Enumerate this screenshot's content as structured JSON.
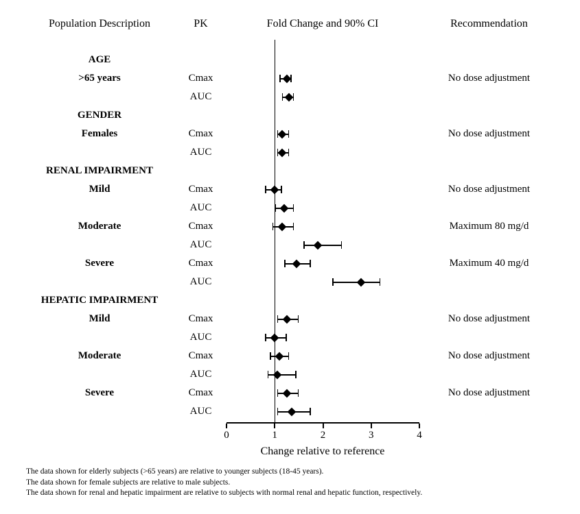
{
  "columns": {
    "population": "Population Description",
    "pk": "PK",
    "fold_change": "Fold Change and 90% CI",
    "recommendation": "Recommendation"
  },
  "chart_data": {
    "type": "scatter",
    "subtype": "forest-plot",
    "title": "Fold Change and 90% CI",
    "x_axis": {
      "min": 0,
      "max": 4,
      "ticks": [
        0,
        1,
        2,
        3,
        4
      ],
      "label": "Change relative to reference",
      "reference_line": 1,
      "grid": false
    },
    "marker_color": "#000000",
    "rows": [
      {
        "kind": "group",
        "label": "AGE"
      },
      {
        "kind": "data",
        "label": ">65 years",
        "pk": "Cmax",
        "estimate": 1.25,
        "ci_low": 1.1,
        "ci_high": 1.35,
        "recommendation": "No dose adjustment"
      },
      {
        "kind": "data",
        "label": "",
        "pk": "AUC",
        "estimate": 1.3,
        "ci_low": 1.15,
        "ci_high": 1.4
      },
      {
        "kind": "group",
        "label": "GENDER"
      },
      {
        "kind": "data",
        "label": "Females",
        "pk": "Cmax",
        "estimate": 1.15,
        "ci_low": 1.05,
        "ci_high": 1.3,
        "recommendation": "No dose adjustment"
      },
      {
        "kind": "data",
        "label": "",
        "pk": "AUC",
        "estimate": 1.15,
        "ci_low": 1.05,
        "ci_high": 1.3
      },
      {
        "kind": "group",
        "label": "RENAL IMPAIRMENT"
      },
      {
        "kind": "data",
        "label": "Mild",
        "pk": "Cmax",
        "estimate": 1.0,
        "ci_low": 0.8,
        "ci_high": 1.15,
        "recommendation": "No dose adjustment"
      },
      {
        "kind": "data",
        "label": "",
        "pk": "AUC",
        "estimate": 1.2,
        "ci_low": 1.0,
        "ci_high": 1.4
      },
      {
        "kind": "data",
        "label": "Moderate",
        "pk": "Cmax",
        "estimate": 1.15,
        "ci_low": 0.95,
        "ci_high": 1.4,
        "recommendation": "Maximum 80 mg/d"
      },
      {
        "kind": "data",
        "label": "",
        "pk": "AUC",
        "estimate": 1.9,
        "ci_low": 1.6,
        "ci_high": 2.4
      },
      {
        "kind": "data",
        "label": "Severe",
        "pk": "Cmax",
        "estimate": 1.45,
        "ci_low": 1.2,
        "ci_high": 1.75,
        "recommendation": "Maximum 40 mg/d"
      },
      {
        "kind": "data",
        "label": "",
        "pk": "AUC",
        "estimate": 2.8,
        "ci_low": 2.2,
        "ci_high": 3.2
      },
      {
        "kind": "group",
        "label": "HEPATIC IMPAIRMENT"
      },
      {
        "kind": "data",
        "label": "Mild",
        "pk": "Cmax",
        "estimate": 1.25,
        "ci_low": 1.05,
        "ci_high": 1.5,
        "recommendation": "No dose adjustment"
      },
      {
        "kind": "data",
        "label": "",
        "pk": "AUC",
        "estimate": 1.0,
        "ci_low": 0.8,
        "ci_high": 1.25
      },
      {
        "kind": "data",
        "label": "Moderate",
        "pk": "Cmax",
        "estimate": 1.1,
        "ci_low": 0.9,
        "ci_high": 1.3,
        "recommendation": "No dose adjustment"
      },
      {
        "kind": "data",
        "label": "",
        "pk": "AUC",
        "estimate": 1.05,
        "ci_low": 0.85,
        "ci_high": 1.45
      },
      {
        "kind": "data",
        "label": "Severe",
        "pk": "Cmax",
        "estimate": 1.25,
        "ci_low": 1.05,
        "ci_high": 1.5,
        "recommendation": "No dose adjustment"
      },
      {
        "kind": "data",
        "label": "",
        "pk": "AUC",
        "estimate": 1.35,
        "ci_low": 1.05,
        "ci_high": 1.75
      }
    ]
  },
  "footnotes": [
    "The data shown for elderly subjects (>65 years) are relative to younger subjects (18-45 years).",
    "The data shown for female subjects are relative to male subjects.",
    "The data shown for renal and hepatic impairment are relative to subjects with normal renal and hepatic function, respectively."
  ]
}
